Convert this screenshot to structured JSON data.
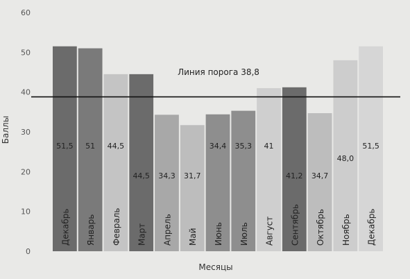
{
  "chart_data": {
    "type": "bar",
    "title": "",
    "xlabel": "Месяцы",
    "ylabel": "Баллы",
    "ylim": [
      0,
      60
    ],
    "yticks": [
      0,
      10,
      20,
      30,
      40,
      50,
      60
    ],
    "grid": false,
    "categories": [
      "Декабрь",
      "Январь",
      "Февраль",
      "Март",
      "Апрель",
      "Май",
      "Июнь",
      "Июль",
      "Август",
      "Сентябрь",
      "Октябрь",
      "Ноябрь",
      "Декабрь"
    ],
    "values": [
      51.5,
      51,
      44.5,
      44.5,
      34.3,
      31.7,
      34.4,
      35.3,
      41,
      41.2,
      34.7,
      48.0,
      51.5
    ],
    "value_labels": [
      "51,5",
      "51",
      "44,5",
      "44,5",
      "34,3",
      "31,7",
      "34,4",
      "35,3",
      "41",
      "41,2",
      "34,7",
      "48,0",
      "51,5"
    ],
    "bar_colors": [
      "#6b6b6b",
      "#7a7a7a",
      "#c4c4c4",
      "#6b6b6b",
      "#a8a8a8",
      "#bdbdbd",
      "#8e8e8e",
      "#8e8e8e",
      "#cfcfcf",
      "#6b6b6b",
      "#bdbdbd",
      "#cdcdcd",
      "#d6d6d6"
    ],
    "threshold": {
      "value": 38.8,
      "label": "Линия порога 38,8"
    }
  }
}
